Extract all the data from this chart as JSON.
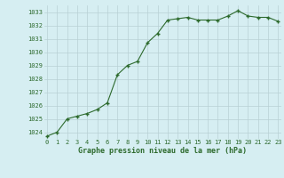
{
  "hours": [
    0,
    1,
    2,
    3,
    4,
    5,
    6,
    7,
    8,
    9,
    10,
    11,
    12,
    13,
    14,
    15,
    16,
    17,
    18,
    19,
    20,
    21,
    22,
    23
  ],
  "pressure": [
    1023.7,
    1024.0,
    1025.0,
    1025.2,
    1025.4,
    1025.7,
    1026.2,
    1028.3,
    1029.0,
    1029.3,
    1030.7,
    1031.4,
    1032.4,
    1032.5,
    1032.6,
    1032.4,
    1032.4,
    1032.4,
    1032.7,
    1033.1,
    1032.7,
    1032.6,
    1032.6,
    1032.3
  ],
  "line_color": "#2d6a2d",
  "marker": "+",
  "bg_color": "#d6eef2",
  "grid_color": "#b8d0d4",
  "xlabel": "Graphe pression niveau de la mer (hPa)",
  "xlabel_color": "#2d6a2d",
  "tick_color": "#2d6a2d",
  "ylim": [
    1023.5,
    1033.5
  ],
  "yticks": [
    1024,
    1025,
    1026,
    1027,
    1028,
    1029,
    1030,
    1031,
    1032,
    1033
  ],
  "xticks": [
    0,
    1,
    2,
    3,
    4,
    5,
    6,
    7,
    8,
    9,
    10,
    11,
    12,
    13,
    14,
    15,
    16,
    17,
    18,
    19,
    20,
    21,
    22,
    23
  ],
  "xlim": [
    -0.3,
    23.3
  ]
}
